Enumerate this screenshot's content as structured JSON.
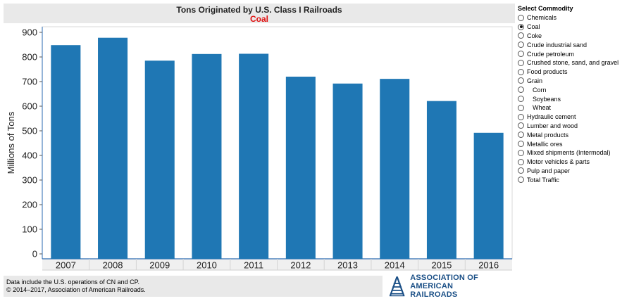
{
  "chart_data": {
    "type": "bar",
    "title": "Tons Originated by U.S. Class I Railroads",
    "subtitle": "Coal",
    "xlabel": "",
    "ylabel": "Millions of Tons",
    "categories": [
      "2007",
      "2008",
      "2009",
      "2010",
      "2011",
      "2012",
      "2013",
      "2014",
      "2015",
      "2016"
    ],
    "values": [
      848,
      878,
      785,
      812,
      813,
      720,
      692,
      711,
      621,
      492
    ],
    "ylim": [
      0,
      900
    ],
    "yticks": [
      "0",
      "100",
      "200",
      "300",
      "400",
      "500",
      "600",
      "700",
      "800",
      "900"
    ],
    "bar_color": "#1f77b4",
    "grid": false,
    "legend": "none"
  },
  "sidebar": {
    "heading": "Select Commodity",
    "selected": "Coal",
    "options": [
      {
        "label": "Chemicals",
        "indent": false
      },
      {
        "label": "Coal",
        "indent": false
      },
      {
        "label": "Coke",
        "indent": false
      },
      {
        "label": "Crude industrial sand",
        "indent": false
      },
      {
        "label": "Crude petroleum",
        "indent": false
      },
      {
        "label": "Crushed stone, sand, and gravel",
        "indent": false
      },
      {
        "label": "Food products",
        "indent": false
      },
      {
        "label": "Grain",
        "indent": false
      },
      {
        "label": "Corn",
        "indent": true
      },
      {
        "label": "Soybeans",
        "indent": true
      },
      {
        "label": "Wheat",
        "indent": true
      },
      {
        "label": "Hydraulic cement",
        "indent": false
      },
      {
        "label": "Lumber and wood",
        "indent": false
      },
      {
        "label": "Metal products",
        "indent": false
      },
      {
        "label": "Metallic ores",
        "indent": false
      },
      {
        "label": "Mixed shipments (Intermodal)",
        "indent": false
      },
      {
        "label": "Motor vehicles & parts",
        "indent": false
      },
      {
        "label": "Pulp and paper",
        "indent": false
      },
      {
        "label": "Total Traffic",
        "indent": false
      }
    ]
  },
  "footer": {
    "line1": "Data include the U.S. operations of CN and CP.",
    "line2": "© 2014–2017, Association of American Railroads."
  },
  "logo": {
    "line1": "ASSOCIATION OF",
    "line2": "AMERICAN RAILROADS",
    "color": "#1a4f86"
  }
}
